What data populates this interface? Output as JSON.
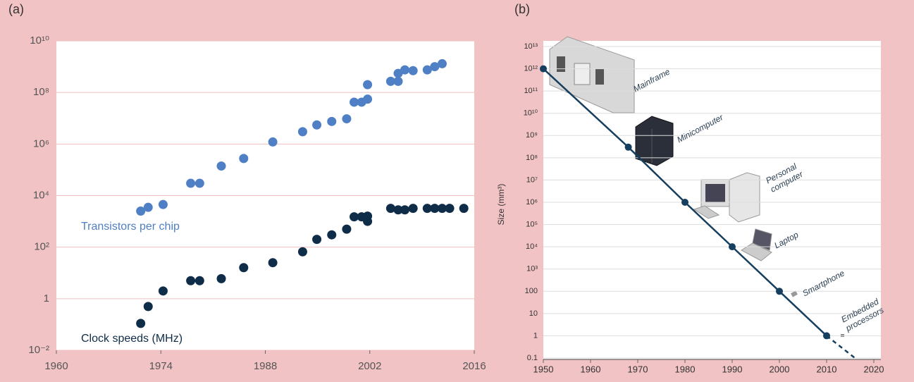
{
  "chart_data": [
    {
      "type": "scatter",
      "panel_label": "(a)",
      "xlim": [
        1960,
        2016
      ],
      "xticks": [
        1960,
        1974,
        1988,
        2002,
        2016
      ],
      "yscale": "log",
      "ylim": [
        0.01,
        10000000000.0
      ],
      "yticks": [
        {
          "value": 0.01,
          "label": "10⁻²"
        },
        1,
        {
          "value": 100,
          "label": "10²"
        },
        {
          "value": 10000,
          "label": "10⁴"
        },
        {
          "value": 1000000,
          "label": "10⁶"
        },
        {
          "value": 100000000,
          "label": "10⁸"
        },
        {
          "value": 10000000000,
          "label": "10¹⁰"
        }
      ],
      "grid": true,
      "series": [
        {
          "name": "Transistors per chip",
          "color": "#4f7fc4",
          "x": [
            1971.3,
            1972.3,
            1974.3,
            1978,
            1979.2,
            1982.1,
            1985.1,
            1989,
            1993,
            1994.9,
            1996.9,
            1998.9,
            1999.9,
            2000.9,
            2001.7,
            2001.7,
            2004.8,
            2005.8,
            2005.8,
            2006.7,
            2007.8,
            2009.7,
            2010.7,
            2011.7
          ],
          "values": [
            2500,
            3500,
            4500,
            30000,
            30000,
            140000,
            275000,
            1200000,
            3000000,
            5500000,
            7500000,
            9500000,
            42000000,
            42000000,
            55000000,
            200000000,
            270000000,
            270000000,
            550000000,
            750000000,
            700000000,
            750000000,
            1000000000,
            1300000000
          ]
        },
        {
          "name": "Clock speeds (MHz)",
          "color": "#0f2d49",
          "x": [
            1971.3,
            1972.3,
            1974.3,
            1978,
            1979.2,
            1982.1,
            1985.1,
            1989,
            1993,
            1994.9,
            1996.9,
            1998.9,
            1999.9,
            2000.9,
            2001.7,
            2001.7,
            2004.8,
            2005.8,
            2006.7,
            2007.8,
            2009.7,
            2010.7,
            2011.7,
            2012.7,
            2014.6
          ],
          "values": [
            0.11,
            0.5,
            2,
            5,
            5,
            6,
            16,
            25,
            66,
            200,
            300,
            500,
            1500,
            1500,
            1600,
            1000,
            3200,
            2800,
            2800,
            3200,
            3200,
            3200,
            3200,
            3200,
            3200
          ]
        }
      ]
    },
    {
      "type": "line",
      "panel_label": "(b)",
      "y_label": "Size (mm³)",
      "xlim": [
        1950,
        2020
      ],
      "xticks": [
        1950,
        1960,
        1970,
        1980,
        1990,
        2000,
        2010,
        2020
      ],
      "yscale": "log",
      "ylim": [
        0.1,
        10000000000000.0
      ],
      "yticks": [
        0.1,
        1,
        10,
        100,
        {
          "value": 1000,
          "label": "10³"
        },
        {
          "value": 10000,
          "label": "10⁴"
        },
        {
          "value": 100000,
          "label": "10⁵"
        },
        {
          "value": 1000000,
          "label": "10⁶"
        },
        {
          "value": 10000000,
          "label": "10⁷"
        },
        {
          "value": 100000000,
          "label": "10⁸"
        },
        {
          "value": 1000000000,
          "label": "10⁹"
        },
        {
          "value": 10000000000,
          "label": "10¹⁰"
        },
        {
          "value": 100000000000,
          "label": "10¹¹"
        },
        {
          "value": 1000000000000,
          "label": "10¹²"
        },
        {
          "value": 10000000000000,
          "label": "10¹³"
        }
      ],
      "grid": true,
      "series": [
        {
          "color": "#163e5e",
          "markers": true,
          "x": [
            1950,
            1968,
            1980,
            1990,
            2000,
            2010
          ],
          "values": [
            1000000000000,
            300000000,
            1000000,
            10000,
            100,
            1
          ]
        },
        {
          "color": "#163e5e",
          "dashed": true,
          "x": [
            2010,
            2016
          ],
          "values": [
            1,
            0.1
          ]
        }
      ],
      "annotations": [
        {
          "lines": [
            "Mainframe"
          ]
        },
        {
          "lines": [
            "Minicomputer"
          ]
        },
        {
          "lines": [
            "Personal",
            "computer"
          ]
        },
        {
          "lines": [
            "Laptop"
          ]
        },
        {
          "lines": [
            "Smartphone"
          ]
        },
        {
          "lines": [
            "Embedded",
            "processors"
          ]
        }
      ]
    }
  ]
}
